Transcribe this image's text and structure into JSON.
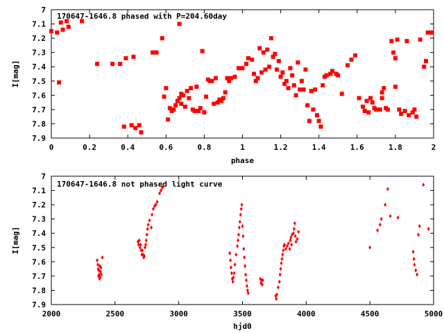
{
  "chart_data": [
    {
      "type": "scatter",
      "title": "170647-1646.8 phased with P=204.60day",
      "xlabel": "phase",
      "ylabel": "I[mag]",
      "xlim": [
        0,
        2
      ],
      "ylim": [
        7.9,
        7.0
      ],
      "y_inverted": true,
      "grid": false,
      "marker": "filled-square",
      "color": "#ff0000",
      "x_ticks": [
        "0",
        "0.2",
        "0.4",
        "0.6",
        "0.8",
        "1",
        "1.2",
        "1.4",
        "1.6",
        "1.8",
        "2"
      ],
      "y_ticks": [
        "7",
        "7.1",
        "7.2",
        "7.3",
        "7.4",
        "7.5",
        "7.6",
        "7.7",
        "7.8",
        "7.9"
      ],
      "points": [
        [
          0.0,
          7.15
        ],
        [
          0.03,
          7.16
        ],
        [
          0.05,
          7.09
        ],
        [
          0.06,
          7.14
        ],
        [
          0.08,
          7.08
        ],
        [
          0.09,
          7.12
        ],
        [
          0.04,
          7.51
        ],
        [
          0.16,
          7.08
        ],
        [
          0.24,
          7.38
        ],
        [
          0.32,
          7.38
        ],
        [
          0.36,
          7.38
        ],
        [
          0.39,
          7.34
        ],
        [
          0.43,
          7.33
        ],
        [
          0.38,
          7.82
        ],
        [
          0.42,
          7.81
        ],
        [
          0.44,
          7.83
        ],
        [
          0.46,
          7.81
        ],
        [
          0.47,
          7.86
        ],
        [
          0.53,
          7.3
        ],
        [
          0.55,
          7.3
        ],
        [
          0.58,
          7.2
        ],
        [
          0.59,
          7.61
        ],
        [
          0.6,
          7.55
        ],
        [
          0.61,
          7.77
        ],
        [
          0.62,
          7.69
        ],
        [
          0.63,
          7.71
        ],
        [
          0.64,
          7.7
        ],
        [
          0.65,
          7.67
        ],
        [
          0.66,
          7.64
        ],
        [
          0.67,
          7.62
        ],
        [
          0.68,
          7.66
        ],
        [
          0.68,
          7.59
        ],
        [
          0.69,
          7.6
        ],
        [
          0.7,
          7.68
        ],
        [
          0.71,
          7.57
        ],
        [
          0.72,
          7.62
        ],
        [
          0.73,
          7.55
        ],
        [
          0.74,
          7.7
        ],
        [
          0.75,
          7.71
        ],
        [
          0.76,
          7.54
        ],
        [
          0.77,
          7.71
        ],
        [
          0.78,
          7.69
        ],
        [
          0.79,
          7.29
        ],
        [
          0.8,
          7.72
        ],
        [
          0.81,
          7.61
        ],
        [
          0.82,
          7.49
        ],
        [
          0.83,
          7.5
        ],
        [
          0.84,
          7.5
        ],
        [
          0.85,
          7.66
        ],
        [
          0.86,
          7.48
        ],
        [
          0.87,
          7.65
        ],
        [
          0.88,
          7.63
        ],
        [
          0.89,
          7.64
        ],
        [
          0.9,
          7.62
        ],
        [
          0.91,
          7.58
        ],
        [
          0.92,
          7.48
        ],
        [
          0.93,
          7.5
        ],
        [
          0.94,
          7.48
        ],
        [
          0.67,
          7.1
        ],
        [
          0.96,
          7.47
        ],
        [
          0.98,
          7.41
        ],
        [
          1.0,
          7.41
        ],
        [
          1.02,
          7.38
        ],
        [
          1.03,
          7.34
        ],
        [
          1.05,
          7.35
        ],
        [
          1.06,
          7.45
        ],
        [
          1.07,
          7.5
        ],
        [
          1.08,
          7.48
        ],
        [
          1.09,
          7.27
        ],
        [
          1.1,
          7.44
        ],
        [
          1.11,
          7.3
        ],
        [
          1.12,
          7.42
        ],
        [
          1.13,
          7.28
        ],
        [
          1.14,
          7.4
        ],
        [
          1.15,
          7.2
        ],
        [
          1.16,
          7.33
        ],
        [
          1.17,
          7.31
        ],
        [
          1.18,
          7.42
        ],
        [
          1.19,
          7.36
        ],
        [
          1.2,
          7.47
        ],
        [
          1.21,
          7.44
        ],
        [
          1.22,
          7.52
        ],
        [
          1.23,
          7.5
        ],
        [
          1.24,
          7.55
        ],
        [
          1.25,
          7.41
        ],
        [
          1.26,
          7.46
        ],
        [
          1.27,
          7.53
        ],
        [
          1.28,
          7.6
        ],
        [
          1.29,
          7.37
        ],
        [
          1.3,
          7.56
        ],
        [
          1.31,
          7.5
        ],
        [
          1.32,
          7.56
        ],
        [
          1.33,
          7.42
        ],
        [
          1.34,
          7.67
        ],
        [
          1.35,
          7.78
        ],
        [
          1.36,
          7.57
        ],
        [
          1.37,
          7.7
        ],
        [
          1.38,
          7.56
        ],
        [
          1.39,
          7.74
        ],
        [
          1.4,
          7.78
        ],
        [
          1.41,
          7.82
        ],
        [
          1.42,
          7.53
        ],
        [
          1.43,
          7.47
        ],
        [
          1.44,
          7.46
        ],
        [
          1.46,
          7.45
        ],
        [
          1.47,
          7.43
        ],
        [
          1.49,
          7.45
        ],
        [
          1.5,
          7.46
        ],
        [
          1.52,
          7.59
        ],
        [
          1.55,
          7.39
        ],
        [
          1.57,
          7.35
        ],
        [
          1.59,
          7.32
        ],
        [
          1.61,
          7.62
        ],
        [
          1.63,
          7.68
        ],
        [
          1.64,
          7.71
        ],
        [
          1.65,
          7.64
        ],
        [
          1.66,
          7.72
        ],
        [
          1.67,
          7.62
        ],
        [
          1.68,
          7.65
        ],
        [
          1.69,
          7.69
        ],
        [
          1.7,
          7.7
        ],
        [
          1.72,
          7.7
        ],
        [
          1.73,
          7.62
        ],
        [
          1.74,
          7.55
        ],
        [
          1.75,
          7.69
        ],
        [
          1.76,
          7.7
        ],
        [
          1.78,
          7.22
        ],
        [
          1.79,
          7.3
        ],
        [
          1.8,
          7.34
        ],
        [
          1.81,
          7.21
        ],
        [
          1.82,
          7.7
        ],
        [
          1.83,
          7.73
        ],
        [
          1.85,
          7.71
        ],
        [
          1.86,
          7.22
        ],
        [
          1.87,
          7.74
        ],
        [
          1.89,
          7.72
        ],
        [
          1.9,
          7.7
        ],
        [
          1.91,
          7.75
        ],
        [
          1.93,
          7.21
        ],
        [
          1.95,
          7.4
        ],
        [
          1.96,
          7.36
        ],
        [
          1.97,
          7.16
        ],
        [
          1.99,
          7.16
        ],
        [
          1.73,
          7.58
        ],
        [
          1.8,
          7.54
        ]
      ]
    },
    {
      "type": "scatter",
      "title": "170647-1646.8 not phased light curve",
      "xlabel": "hjd0",
      "ylabel": "I[mag]",
      "xlim": [
        2000,
        5000
      ],
      "ylim": [
        7.9,
        7.0
      ],
      "y_inverted": true,
      "grid": false,
      "marker": "small-diamond",
      "color": "#ff0000",
      "x_ticks": [
        "2000",
        "2500",
        "3000",
        "3500",
        "4000",
        "4500",
        "5000"
      ],
      "y_ticks": [
        "7",
        "7.1",
        "7.2",
        "7.3",
        "7.4",
        "7.5",
        "7.6",
        "7.7",
        "7.8",
        "7.9"
      ],
      "points": [
        [
          2360,
          7.59
        ],
        [
          2365,
          7.62
        ],
        [
          2368,
          7.65
        ],
        [
          2370,
          7.7
        ],
        [
          2372,
          7.66
        ],
        [
          2375,
          7.69
        ],
        [
          2378,
          7.72
        ],
        [
          2380,
          7.63
        ],
        [
          2383,
          7.71
        ],
        [
          2386,
          7.67
        ],
        [
          2389,
          7.64
        ],
        [
          2392,
          7.69
        ],
        [
          2400,
          7.57
        ],
        [
          2680,
          7.46
        ],
        [
          2685,
          7.48
        ],
        [
          2690,
          7.45
        ],
        [
          2695,
          7.5
        ],
        [
          2700,
          7.48
        ],
        [
          2705,
          7.52
        ],
        [
          2710,
          7.55
        ],
        [
          2715,
          7.52
        ],
        [
          2720,
          7.55
        ],
        [
          2725,
          7.57
        ],
        [
          2730,
          7.56
        ],
        [
          2735,
          7.5
        ],
        [
          2740,
          7.48
        ],
        [
          2745,
          7.45
        ],
        [
          2750,
          7.41
        ],
        [
          2755,
          7.37
        ],
        [
          2760,
          7.34
        ],
        [
          2770,
          7.31
        ],
        [
          2785,
          7.36
        ],
        [
          2790,
          7.27
        ],
        [
          2800,
          7.23
        ],
        [
          2810,
          7.21
        ],
        [
          2820,
          7.2
        ],
        [
          2830,
          7.18
        ],
        [
          2850,
          7.12
        ],
        [
          2860,
          7.1
        ],
        [
          2870,
          7.08
        ],
        [
          2880,
          7.07
        ],
        [
          3400,
          7.54
        ],
        [
          3405,
          7.59
        ],
        [
          3410,
          7.64
        ],
        [
          3415,
          7.68
        ],
        [
          3420,
          7.72
        ],
        [
          3425,
          7.74
        ],
        [
          3430,
          7.71
        ],
        [
          3435,
          7.68
        ],
        [
          3440,
          7.62
        ],
        [
          3450,
          7.55
        ],
        [
          3460,
          7.49
        ],
        [
          3465,
          7.45
        ],
        [
          3470,
          7.41
        ],
        [
          3475,
          7.36
        ],
        [
          3480,
          7.32
        ],
        [
          3485,
          7.27
        ],
        [
          3490,
          7.23
        ],
        [
          3495,
          7.2
        ],
        [
          3500,
          7.35
        ],
        [
          3505,
          7.42
        ],
        [
          3510,
          7.51
        ],
        [
          3515,
          7.57
        ],
        [
          3520,
          7.63
        ],
        [
          3525,
          7.69
        ],
        [
          3530,
          7.73
        ],
        [
          3535,
          7.77
        ],
        [
          3540,
          7.8
        ],
        [
          3545,
          7.82
        ],
        [
          3640,
          7.72
        ],
        [
          3645,
          7.75
        ],
        [
          3650,
          7.73
        ],
        [
          3655,
          7.76
        ],
        [
          3660,
          7.73
        ],
        [
          3760,
          7.84
        ],
        [
          3765,
          7.86
        ],
        [
          3770,
          7.83
        ],
        [
          3780,
          7.78
        ],
        [
          3790,
          7.74
        ],
        [
          3795,
          7.69
        ],
        [
          3800,
          7.65
        ],
        [
          3805,
          7.61
        ],
        [
          3810,
          7.58
        ],
        [
          3815,
          7.55
        ],
        [
          3820,
          7.52
        ],
        [
          3825,
          7.49
        ],
        [
          3830,
          7.48
        ],
        [
          3840,
          7.51
        ],
        [
          3850,
          7.49
        ],
        [
          3860,
          7.47
        ],
        [
          3870,
          7.51
        ],
        [
          3875,
          7.45
        ],
        [
          3880,
          7.43
        ],
        [
          3885,
          7.48
        ],
        [
          3890,
          7.41
        ],
        [
          3900,
          7.4
        ],
        [
          3905,
          7.37
        ],
        [
          3910,
          7.33
        ],
        [
          3915,
          7.42
        ],
        [
          3920,
          7.46
        ],
        [
          3930,
          7.44
        ],
        [
          3940,
          7.39
        ],
        [
          4500,
          7.5
        ],
        [
          4560,
          7.38
        ],
        [
          4580,
          7.34
        ],
        [
          4590,
          7.3
        ],
        [
          4620,
          7.2
        ],
        [
          4640,
          7.09
        ],
        [
          4660,
          7.28
        ],
        [
          4720,
          7.29
        ],
        [
          4840,
          7.53
        ],
        [
          4845,
          7.58
        ],
        [
          4850,
          7.62
        ],
        [
          4860,
          7.66
        ],
        [
          4870,
          7.69
        ],
        [
          4880,
          7.41
        ],
        [
          4890,
          7.35
        ],
        [
          4920,
          7.06
        ],
        [
          4960,
          7.37
        ]
      ]
    }
  ]
}
